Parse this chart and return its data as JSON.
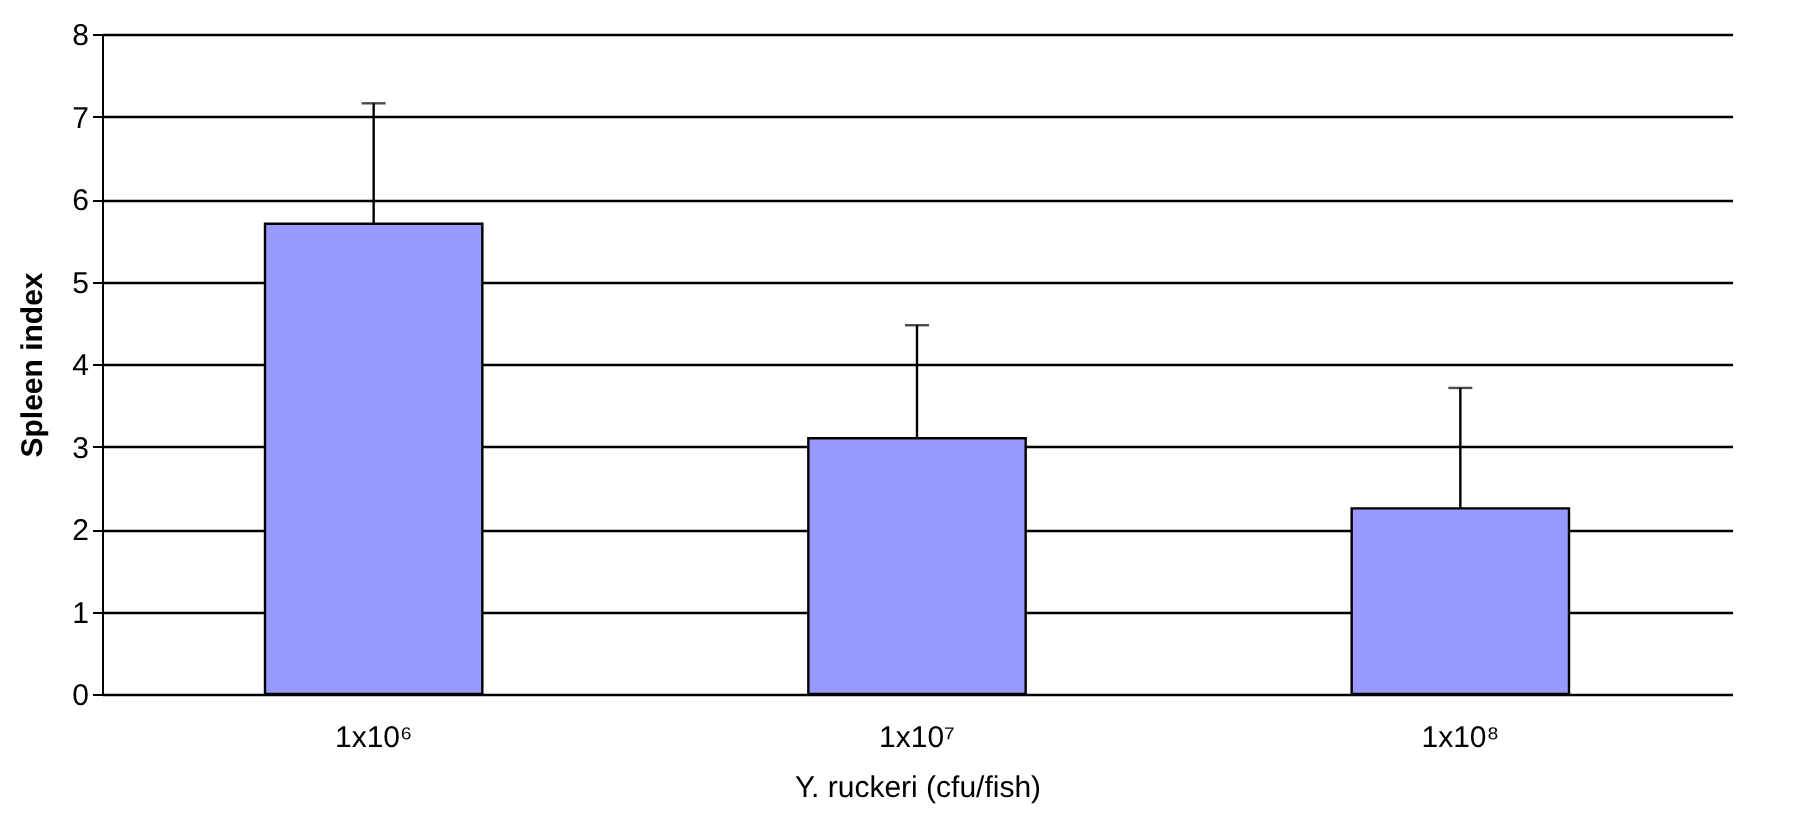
{
  "chart_data": {
    "type": "bar",
    "xlabel": "Y. ruckeri (cfu/fish)",
    "ylabel": "Spleen index",
    "categories": [
      "1x10⁶",
      "1x10⁷",
      "1x10⁸"
    ],
    "values": [
      5.7,
      3.1,
      2.25
    ],
    "errors": [
      [
        5.7,
        7.16
      ],
      [
        3.1,
        4.47
      ],
      [
        2.25,
        3.71
      ]
    ],
    "color": "#9999ff",
    "ylim": [
      0,
      8
    ],
    "yticks": [
      0,
      1,
      2,
      3,
      4,
      5,
      6,
      7,
      8
    ],
    "grid": "y"
  }
}
